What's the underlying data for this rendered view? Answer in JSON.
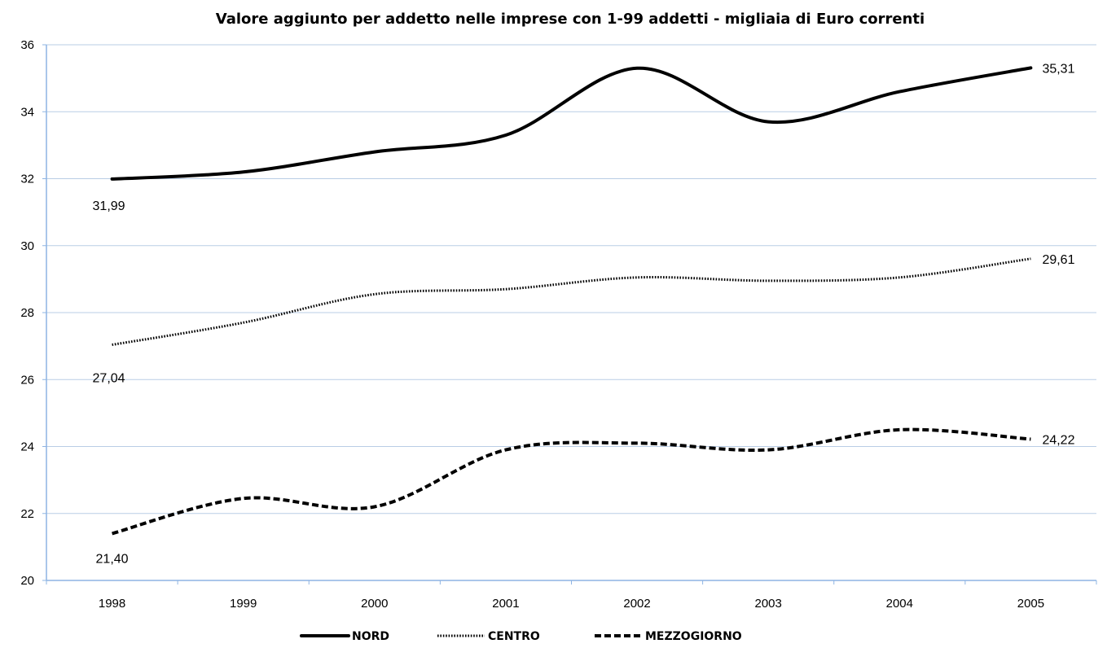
{
  "chart_data": {
    "type": "line",
    "title": "Valore aggiunto per addetto nelle imprese con 1-99 addetti - migliaia di Euro correnti",
    "xlabel": "",
    "ylabel": "",
    "x": [
      "1998",
      "1999",
      "2000",
      "2001",
      "2002",
      "2003",
      "2004",
      "2005"
    ],
    "ylim": [
      20,
      36
    ],
    "yticks": [
      20,
      22,
      24,
      26,
      28,
      30,
      32,
      34,
      36
    ],
    "grid": true,
    "legend_position": "bottom",
    "series": [
      {
        "name": "NORD",
        "style": "solid",
        "values": [
          31.99,
          32.2,
          32.8,
          33.3,
          35.3,
          33.7,
          34.6,
          35.31
        ],
        "labels": [
          {
            "index": 0,
            "text": "31,99"
          },
          {
            "index": 7,
            "text": "35,31"
          }
        ]
      },
      {
        "name": "CENTRO",
        "style": "dotted",
        "values": [
          27.04,
          27.7,
          28.55,
          28.7,
          29.05,
          28.95,
          29.05,
          29.61
        ],
        "labels": [
          {
            "index": 0,
            "text": "27,04"
          },
          {
            "index": 7,
            "text": "29,61"
          }
        ]
      },
      {
        "name": "MEZZOGIORNO",
        "style": "dashed",
        "values": [
          21.4,
          22.45,
          22.2,
          23.9,
          24.1,
          23.9,
          24.5,
          24.22
        ],
        "labels": [
          {
            "index": 0,
            "text": "21,40"
          },
          {
            "index": 7,
            "text": "24,22"
          }
        ]
      }
    ]
  },
  "colors": {
    "line": "#000000",
    "grid": "#b9cde5",
    "axis": "#8eb4e3"
  }
}
